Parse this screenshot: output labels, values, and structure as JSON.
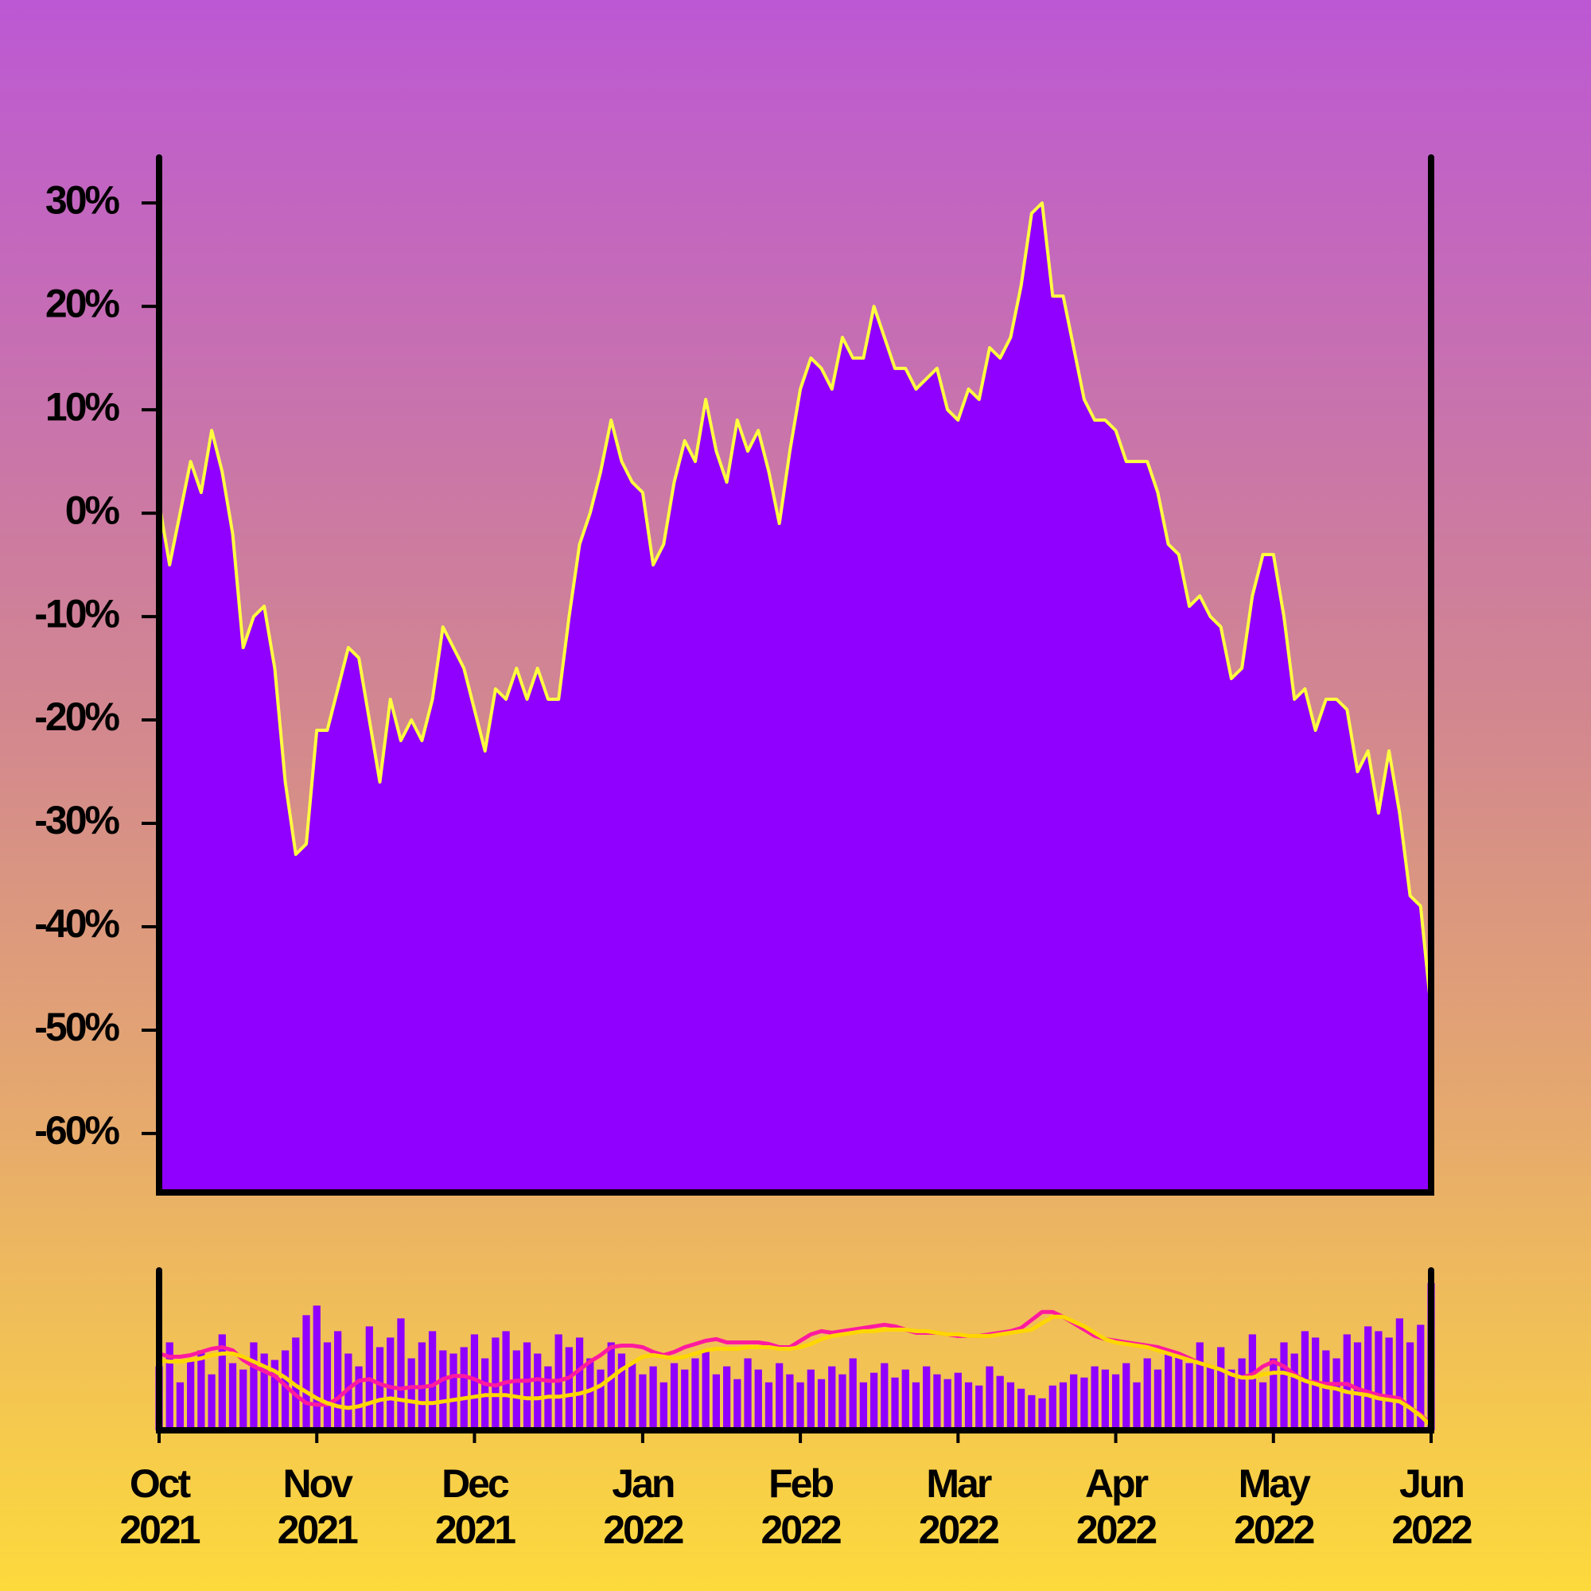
{
  "chart_data": [
    {
      "type": "area",
      "categories": [
        "Oct\n2021",
        null,
        null,
        null,
        null,
        null,
        null,
        null,
        null,
        null,
        null,
        null,
        null,
        null,
        null,
        "Nov\n2021",
        null,
        null,
        null,
        null,
        null,
        null,
        null,
        null,
        null,
        null,
        null,
        null,
        null,
        null,
        "Dec\n2021",
        null,
        null,
        null,
        null,
        null,
        null,
        null,
        null,
        null,
        null,
        null,
        null,
        null,
        null,
        null,
        "Jan\n2022",
        null,
        null,
        null,
        null,
        null,
        null,
        null,
        null,
        null,
        null,
        null,
        null,
        null,
        null,
        "Feb\n2022",
        null,
        null,
        null,
        null,
        null,
        null,
        null,
        null,
        null,
        null,
        null,
        null,
        null,
        null,
        "Mar\n2022",
        null,
        null,
        null,
        null,
        null,
        null,
        null,
        null,
        null,
        null,
        null,
        null,
        null,
        null,
        "Apr\n2022",
        null,
        null,
        null,
        null,
        null,
        null,
        null,
        null,
        null,
        null,
        null,
        null,
        null,
        null,
        "May\n2022",
        null,
        null,
        null,
        null,
        null,
        null,
        null,
        null,
        null,
        null,
        null,
        null,
        null,
        null,
        "Jun\n2022"
      ],
      "values": [
        1,
        -5,
        0,
        5,
        2,
        8,
        4,
        -2,
        -13,
        -10,
        -9,
        -15,
        -26,
        -33,
        -32,
        -21,
        -21,
        -17,
        -13,
        -14,
        -20,
        -26,
        -18,
        -22,
        -20,
        -22,
        -18,
        -11,
        -13,
        -15,
        -19,
        -23,
        -17,
        -18,
        -15,
        -18,
        -15,
        -18,
        -18,
        -10,
        -3,
        0,
        4,
        9,
        5,
        3,
        2,
        -5,
        -3,
        3,
        7,
        5,
        11,
        6,
        3,
        9,
        6,
        8,
        4,
        -1,
        6,
        12,
        15,
        14,
        12,
        17,
        15,
        15,
        20,
        17,
        14,
        14,
        12,
        13,
        14,
        10,
        9,
        12,
        11,
        16,
        15,
        17,
        22,
        29,
        30,
        21,
        21,
        16,
        11,
        9,
        9,
        8,
        5,
        5,
        5,
        2,
        -3,
        -4,
        -9,
        -8,
        -10,
        -11,
        -16,
        -15,
        -8,
        -4,
        -4,
        -10,
        -18,
        -17,
        -21,
        -18,
        -18,
        -19,
        -25,
        -23,
        -29,
        -23,
        -29,
        -37,
        -38,
        -48
      ],
      "color": "#9000ff",
      "line_color": "#ffff40",
      "ylim": [
        -65.7,
        34.4
      ],
      "yticks": [
        {
          "value": -60,
          "label": "-60%"
        },
        {
          "value": -50,
          "label": "-50%"
        },
        {
          "value": -40,
          "label": "-40%"
        },
        {
          "value": -30,
          "label": "-30%"
        },
        {
          "value": -20,
          "label": "-20%"
        },
        {
          "value": -10,
          "label": "-10%"
        },
        {
          "value": 0,
          "label": "0%"
        },
        {
          "value": 10,
          "label": "10%"
        },
        {
          "value": 20,
          "label": "20%"
        },
        {
          "value": 30,
          "label": "30%"
        }
      ]
    },
    {
      "type": "volume",
      "values": [
        40,
        55,
        30,
        45,
        50,
        35,
        60,
        42,
        38,
        55,
        48,
        44,
        50,
        58,
        72,
        78,
        55,
        62,
        48,
        40,
        65,
        52,
        58,
        70,
        45,
        55,
        62,
        50,
        48,
        52,
        60,
        45,
        58,
        62,
        50,
        55,
        48,
        40,
        60,
        52,
        58,
        45,
        38,
        55,
        48,
        42,
        35,
        40,
        30,
        42,
        38,
        45,
        50,
        35,
        40,
        32,
        45,
        38,
        30,
        42,
        35,
        30,
        38,
        32,
        40,
        35,
        45,
        30,
        36,
        42,
        33,
        38,
        30,
        40,
        35,
        32,
        36,
        30,
        28,
        40,
        34,
        30,
        26,
        22,
        20,
        28,
        30,
        35,
        33,
        40,
        38,
        35,
        42,
        30,
        45,
        38,
        50,
        48,
        42,
        55,
        40,
        52,
        38,
        45,
        60,
        30,
        45,
        55,
        48,
        62,
        58,
        50,
        45,
        60,
        55,
        65,
        62,
        58,
        70,
        55,
        66,
        92
      ],
      "color": "#9000ff",
      "ylim": [
        0,
        100
      ],
      "series": [
        {
          "color": "#ff1aa0",
          "values": [
            48,
            46,
            46,
            47,
            49,
            51,
            52,
            50,
            44,
            40,
            37,
            34,
            28,
            22,
            17,
            16,
            16,
            20,
            26,
            31,
            32,
            29,
            27,
            26,
            27,
            27,
            28,
            32,
            34,
            34,
            32,
            29,
            28,
            30,
            31,
            31,
            32,
            31,
            31,
            33,
            38,
            43,
            47,
            52,
            53,
            53,
            52,
            49,
            47,
            49,
            52,
            54,
            56,
            57,
            55,
            55,
            55,
            55,
            54,
            52,
            52,
            56,
            60,
            62,
            61,
            62,
            63,
            64,
            65,
            66,
            65,
            63,
            61,
            61,
            61,
            60,
            59,
            59,
            59,
            60,
            61,
            62,
            64,
            69,
            74,
            74,
            71,
            67,
            63,
            59,
            57,
            56,
            55,
            54,
            53,
            52,
            50,
            48,
            45,
            42,
            40,
            38,
            35,
            33,
            35,
            40,
            43,
            40,
            35,
            31,
            30,
            29,
            29,
            29,
            26,
            24,
            22,
            21,
            20,
            14,
            10,
            3
          ]
        },
        {
          "color": "#ffd700",
          "values": [
            44,
            43,
            43,
            44,
            45,
            47,
            48,
            48,
            46,
            43,
            40,
            37,
            33,
            28,
            24,
            20,
            17,
            15,
            14,
            15,
            17,
            19,
            20,
            19,
            18,
            17,
            17,
            18,
            19,
            20,
            21,
            22,
            22,
            22,
            21,
            20,
            20,
            21,
            21,
            22,
            23,
            25,
            28,
            33,
            38,
            42,
            46,
            47,
            46,
            45,
            46,
            48,
            50,
            51,
            51,
            51,
            52,
            52,
            52,
            51,
            51,
            52,
            54,
            57,
            59,
            60,
            61,
            62,
            62,
            63,
            63,
            63,
            62,
            62,
            61,
            60,
            60,
            59,
            59,
            59,
            60,
            61,
            62,
            63,
            67,
            71,
            71,
            68,
            65,
            61,
            57,
            55,
            54,
            53,
            52,
            50,
            48,
            46,
            44,
            42,
            40,
            38,
            35,
            33,
            33,
            35,
            36,
            36,
            34,
            31,
            29,
            27,
            26,
            24,
            23,
            22,
            20,
            19,
            18,
            14,
            9,
            3
          ]
        }
      ]
    }
  ]
}
